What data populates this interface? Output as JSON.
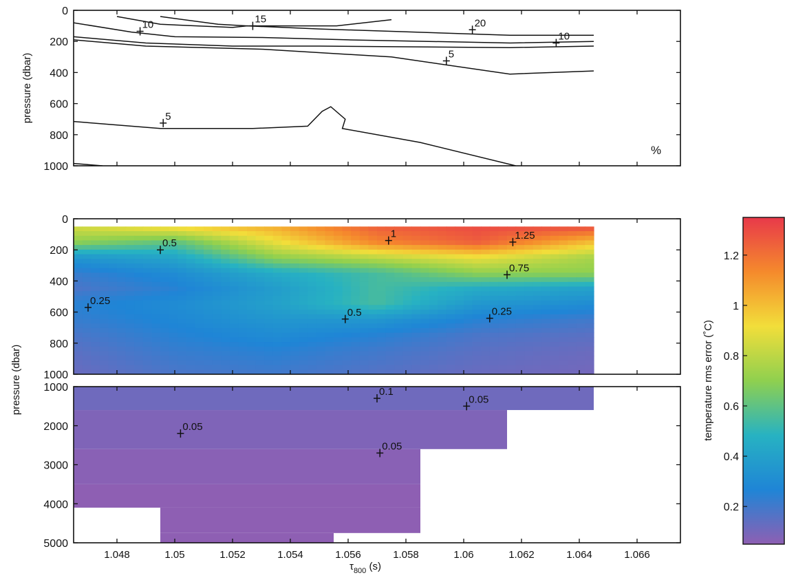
{
  "chart_data": [
    {
      "type": "contour",
      "panel": "top",
      "unit_label": "%",
      "ylabel": "pressure (dbar)",
      "xlim": [
        1.0465,
        1.0675
      ],
      "ylim": [
        1000,
        0
      ],
      "y_ticks": [
        "0",
        "200",
        "400",
        "600",
        "800",
        "1000"
      ],
      "contours": [
        {
          "level": "10",
          "points": [
            [
              1.0465,
              80
            ],
            [
              1.0485,
              140
            ],
            [
              1.05,
              170
            ],
            [
              1.053,
              175
            ],
            [
              1.056,
              190
            ],
            [
              1.0616,
              210
            ],
            [
              1.0645,
              200
            ]
          ]
        },
        {
          "level": "15",
          "points": [
            [
              1.048,
              40
            ],
            [
              1.0495,
              90
            ],
            [
              1.052,
              110
            ],
            [
              1.0525,
              100
            ],
            [
              1.055,
              120
            ],
            [
              1.0616,
              160
            ],
            [
              1.0645,
              160
            ]
          ]
        },
        {
          "level": "20",
          "points": [
            [
              1.0495,
              40
            ],
            [
              1.0515,
              90
            ],
            [
              1.0525,
              100
            ],
            [
              1.0556,
              100
            ],
            [
              1.0575,
              60
            ]
          ]
        },
        {
          "level": "10",
          "points": [
            [
              1.0465,
              170
            ],
            [
              1.049,
              210
            ],
            [
              1.052,
              230
            ],
            [
              1.055,
              230
            ],
            [
              1.0616,
              240
            ],
            [
              1.0645,
              230
            ]
          ]
        },
        {
          "level": "5",
          "points": [
            [
              1.0465,
              190
            ],
            [
              1.049,
              230
            ],
            [
              1.053,
              250
            ],
            [
              1.0575,
              300
            ],
            [
              1.0616,
              410
            ],
            [
              1.0645,
              390
            ]
          ]
        },
        {
          "level": "5",
          "points": [
            [
              1.0465,
              715
            ],
            [
              1.0495,
              760
            ],
            [
              1.0527,
              760
            ],
            [
              1.0546,
              745
            ],
            [
              1.0551,
              650
            ],
            [
              1.0554,
              620
            ],
            [
              1.0559,
              700
            ],
            [
              1.0558,
              760
            ],
            [
              1.0585,
              850
            ],
            [
              1.0618,
              1000
            ]
          ]
        },
        {
          "level": "",
          "points": [
            [
              1.0465,
              985
            ],
            [
              1.0475,
              1000
            ]
          ]
        }
      ],
      "labels": [
        {
          "text": "10",
          "x": 1.0488,
          "y": 135
        },
        {
          "text": "15",
          "x": 1.0527,
          "y": 100
        },
        {
          "text": "20",
          "x": 1.0603,
          "y": 125
        },
        {
          "text": "10",
          "x": 1.0632,
          "y": 210
        },
        {
          "text": "5",
          "x": 1.0594,
          "y": 325
        },
        {
          "text": "5",
          "x": 1.0496,
          "y": 725
        }
      ]
    },
    {
      "type": "heatmap",
      "panel": "middle",
      "ylabel": "pressure (dbar)",
      "xlim": [
        1.0465,
        1.0675
      ],
      "ylim": [
        1000,
        0
      ],
      "y_ticks": [
        "0",
        "200",
        "400",
        "600",
        "800",
        "1000"
      ],
      "x_extent": [
        1.0465,
        1.0645
      ],
      "y_extent": [
        50,
        1000
      ],
      "grid_x": [
        1.0465,
        1.05,
        1.0535,
        1.057,
        1.0605,
        1.0645
      ],
      "grid_y": [
        50,
        150,
        250,
        350,
        450,
        550,
        650,
        750,
        850,
        1000
      ],
      "values": [
        [
          0.85,
          0.95,
          1.05,
          1.25,
          1.3,
          1.3
        ],
        [
          0.7,
          0.6,
          0.9,
          1.15,
          1.25,
          1.0
        ],
        [
          0.35,
          0.42,
          0.7,
          0.8,
          0.9,
          0.75
        ],
        [
          0.22,
          0.3,
          0.45,
          0.55,
          0.7,
          0.7
        ],
        [
          0.18,
          0.25,
          0.38,
          0.55,
          0.45,
          0.4
        ],
        [
          0.25,
          0.3,
          0.4,
          0.55,
          0.35,
          0.3
        ],
        [
          0.22,
          0.28,
          0.35,
          0.35,
          0.25,
          0.2
        ],
        [
          0.18,
          0.25,
          0.3,
          0.25,
          0.18,
          0.15
        ],
        [
          0.15,
          0.22,
          0.25,
          0.2,
          0.15,
          0.12
        ],
        [
          0.12,
          0.18,
          0.2,
          0.16,
          0.12,
          0.1
        ]
      ],
      "labels": [
        {
          "text": "0.5",
          "x": 1.0495,
          "y": 200
        },
        {
          "text": "1",
          "x": 1.0574,
          "y": 140
        },
        {
          "text": "1.25",
          "x": 1.0617,
          "y": 150
        },
        {
          "text": "0.75",
          "x": 1.0615,
          "y": 360
        },
        {
          "text": "0.25",
          "x": 1.047,
          "y": 570
        },
        {
          "text": "0.5",
          "x": 1.0559,
          "y": 645
        },
        {
          "text": "0.25",
          "x": 1.0609,
          "y": 640
        }
      ]
    },
    {
      "type": "heatmap",
      "panel": "bottom",
      "xlabel_main": "τ",
      "xlabel_sub": "800",
      "xlabel_unit": " (s)",
      "xlim": [
        1.0465,
        1.0675
      ],
      "ylim": [
        5000,
        1000
      ],
      "x_ticks": [
        "1.048",
        "1.05",
        "1.052",
        "1.054",
        "1.056",
        "1.058",
        "1.06",
        "1.062",
        "1.064",
        "1.066"
      ],
      "x_tick_values": [
        1.048,
        1.05,
        1.052,
        1.054,
        1.056,
        1.058,
        1.06,
        1.062,
        1.064,
        1.066
      ],
      "y_ticks": [
        "1000",
        "2000",
        "3000",
        "4000",
        "5000"
      ],
      "blocks": [
        {
          "x0": 1.0465,
          "x1": 1.0645,
          "y0": 1000,
          "y1": 1600,
          "value": 0.11
        },
        {
          "x0": 1.0465,
          "x1": 1.0615,
          "y0": 1600,
          "y1": 2600,
          "value": 0.08
        },
        {
          "x0": 1.0465,
          "x1": 1.0585,
          "y0": 2600,
          "y1": 3500,
          "value": 0.06
        },
        {
          "x0": 1.0465,
          "x1": 1.0585,
          "y0": 3500,
          "y1": 4100,
          "value": 0.04
        },
        {
          "x0": 1.0495,
          "x1": 1.0585,
          "y0": 4100,
          "y1": 4750,
          "value": 0.04
        },
        {
          "x0": 1.0495,
          "x1": 1.0555,
          "y0": 4750,
          "y1": 5000,
          "value": 0.04
        }
      ],
      "labels": [
        {
          "text": "0.1",
          "x": 1.057,
          "y": 1300
        },
        {
          "text": "0.05",
          "x": 1.0601,
          "y": 1500
        },
        {
          "text": "0.05",
          "x": 1.0502,
          "y": 2200
        },
        {
          "text": "0.05",
          "x": 1.0571,
          "y": 2700
        }
      ]
    },
    {
      "type": "colorbar",
      "label": "temperature rms error (˚C)",
      "range": [
        0.05,
        1.35
      ],
      "ticks": [
        "0.2",
        "0.4",
        "0.6",
        "0.8",
        "1",
        "1.2"
      ],
      "tick_values": [
        0.2,
        0.4,
        0.6,
        0.8,
        1.0,
        1.2
      ],
      "colormap": [
        "#8e5fb3",
        "#1f85d6",
        "#27b2c2",
        "#8fd04f",
        "#f2de3a",
        "#f58a2c",
        "#e8394a"
      ]
    }
  ]
}
